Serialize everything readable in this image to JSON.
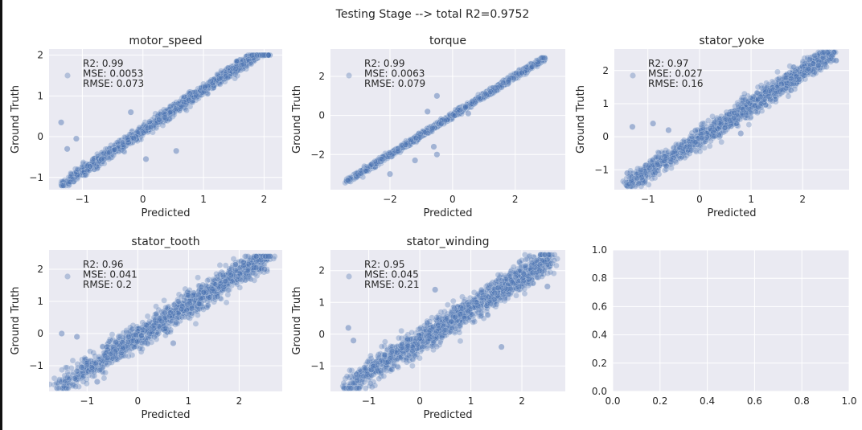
{
  "figure": {
    "title": "Testing Stage --> total R2=0.9752",
    "point_color": "#4c72b0",
    "axes_bg": "#eaeaf2"
  },
  "chart_data": [
    {
      "type": "scatter",
      "title": "motor_speed",
      "xlabel": "Predicted",
      "ylabel": "Ground Truth",
      "xlim": [
        -1.55,
        2.3
      ],
      "ylim": [
        -1.3,
        2.15
      ],
      "xticks": [
        -1,
        0,
        1,
        2
      ],
      "yticks": [
        -1,
        0,
        1,
        2
      ],
      "legend": {
        "placement": "top-left",
        "lines": [
          "R2: 0.99",
          "MSE: 0.0053",
          "RMSE: 0.073"
        ]
      },
      "trend": {
        "x_min": -1.35,
        "x_max": 2.1,
        "y_min": -1.2,
        "y_max": 2.0,
        "slope": 1.0,
        "noise": 0.07
      },
      "outliers": [
        [
          -1.35,
          0.35
        ],
        [
          -1.1,
          -0.05
        ],
        [
          -1.25,
          -0.3
        ],
        [
          -0.2,
          0.6
        ],
        [
          0.55,
          -0.35
        ],
        [
          0.05,
          -0.55
        ]
      ]
    },
    {
      "type": "scatter",
      "title": "torque",
      "xlabel": "Predicted",
      "ylabel": "Ground Truth",
      "xlim": [
        -3.9,
        3.6
      ],
      "ylim": [
        -3.8,
        3.4
      ],
      "xticks": [
        -2,
        0,
        2
      ],
      "yticks": [
        -2,
        0,
        2
      ],
      "legend": {
        "placement": "top-left",
        "lines": [
          "R2: 0.99",
          "MSE: 0.0063",
          "RMSE: 0.079"
        ]
      },
      "trend": {
        "x_min": -3.45,
        "x_max": 2.95,
        "y_min": -3.45,
        "y_max": 2.95,
        "slope": 1.0,
        "noise": 0.07
      },
      "outliers": [
        [
          -0.6,
          -1.6
        ],
        [
          -0.5,
          -2.0
        ],
        [
          -0.8,
          0.2
        ],
        [
          -0.5,
          1.0
        ],
        [
          0.5,
          0.1
        ],
        [
          -1.2,
          -2.3
        ],
        [
          -2.0,
          -3.0
        ]
      ]
    },
    {
      "type": "scatter",
      "title": "stator_yoke",
      "xlabel": "Predicted",
      "ylabel": "Ground Truth",
      "xlim": [
        -1.65,
        2.9
      ],
      "ylim": [
        -1.6,
        2.65
      ],
      "xticks": [
        -1,
        0,
        1,
        2
      ],
      "yticks": [
        -1,
        0,
        1,
        2
      ],
      "legend": {
        "placement": "top-left",
        "lines": [
          "R2: 0.97",
          "MSE: 0.027",
          "RMSE: 0.16"
        ]
      },
      "trend": {
        "x_min": -1.45,
        "x_max": 2.6,
        "y_min": -1.5,
        "y_max": 2.55,
        "slope": 1.0,
        "noise": 0.15
      },
      "outliers": [
        [
          -1.4,
          -1.1
        ],
        [
          -1.3,
          0.3
        ],
        [
          -0.9,
          0.4
        ],
        [
          -0.6,
          0.2
        ],
        [
          0.8,
          0.1
        ]
      ]
    },
    {
      "type": "scatter",
      "title": "stator_tooth",
      "xlabel": "Predicted",
      "ylabel": "Ground Truth",
      "xlim": [
        -1.75,
        2.85
      ],
      "ylim": [
        -1.8,
        2.6
      ],
      "xticks": [
        -1,
        0,
        1,
        2
      ],
      "yticks": [
        -1,
        0,
        1,
        2
      ],
      "legend": {
        "placement": "top-left",
        "lines": [
          "R2: 0.96",
          "MSE: 0.041",
          "RMSE: 0.2"
        ]
      },
      "trend": {
        "x_min": -1.6,
        "x_max": 2.6,
        "y_min": -1.7,
        "y_max": 2.4,
        "slope": 1.0,
        "noise": 0.2
      },
      "outliers": [
        [
          -1.5,
          0.0
        ],
        [
          -1.2,
          -0.1
        ],
        [
          0.7,
          -0.3
        ],
        [
          2.5,
          2.0
        ],
        [
          -0.8,
          -1.5
        ]
      ]
    },
    {
      "type": "scatter",
      "title": "stator_winding",
      "xlabel": "Predicted",
      "ylabel": "Ground Truth",
      "xlim": [
        -1.75,
        2.85
      ],
      "ylim": [
        -1.8,
        2.65
      ],
      "xticks": [
        -1,
        0,
        1,
        2
      ],
      "yticks": [
        -1,
        0,
        1,
        2
      ],
      "legend": {
        "placement": "top-left",
        "lines": [
          "R2: 0.95",
          "MSE: 0.045",
          "RMSE: 0.21"
        ]
      },
      "trend": {
        "x_min": -1.5,
        "x_max": 2.6,
        "y_min": -1.7,
        "y_max": 2.5,
        "slope": 1.0,
        "noise": 0.21
      },
      "outliers": [
        [
          -1.4,
          0.2
        ],
        [
          -1.3,
          -0.2
        ],
        [
          1.6,
          -0.4
        ],
        [
          2.5,
          1.5
        ],
        [
          0.3,
          1.4
        ]
      ]
    },
    {
      "type": "scatter",
      "title": "",
      "xlabel": "",
      "ylabel": "",
      "xlim": [
        0,
        1
      ],
      "ylim": [
        0,
        1
      ],
      "xticks": [
        0.0,
        0.2,
        0.4,
        0.6,
        0.8,
        1.0
      ],
      "yticks": [
        0.0,
        0.2,
        0.4,
        0.6,
        0.8,
        1.0
      ],
      "tick_labels_x": [
        "0.0",
        "0.2",
        "0.4",
        "0.6",
        "0.8",
        "1.0"
      ],
      "tick_labels_y": [
        "0.0",
        "0.2",
        "0.4",
        "0.6",
        "0.8",
        "1.0"
      ],
      "empty": true
    }
  ]
}
